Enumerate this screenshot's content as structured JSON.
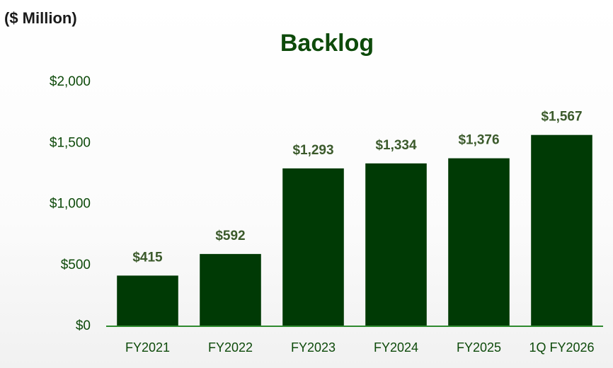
{
  "chart_data": {
    "type": "bar",
    "title": "Backlog",
    "unit_label": "($ Million)",
    "categories": [
      "FY2021",
      "FY2022",
      "FY2023",
      "FY2024",
      "FY2025",
      "1Q FY2026"
    ],
    "values": [
      415,
      592,
      1293,
      1334,
      1376,
      1567
    ],
    "value_labels": [
      "$415",
      "$592",
      "$1,293",
      "$1,334",
      "$1,376",
      "$1,567"
    ],
    "color": "#003a05",
    "ylim": [
      0,
      2000
    ],
    "yticks": [
      {
        "value": 0,
        "label": "$0"
      },
      {
        "value": 500,
        "label": "$500"
      },
      {
        "value": 1000,
        "label": "$1,000"
      },
      {
        "value": 1500,
        "label": "$1,500"
      },
      {
        "value": 2000,
        "label": "$2,000"
      }
    ],
    "grid": false
  }
}
